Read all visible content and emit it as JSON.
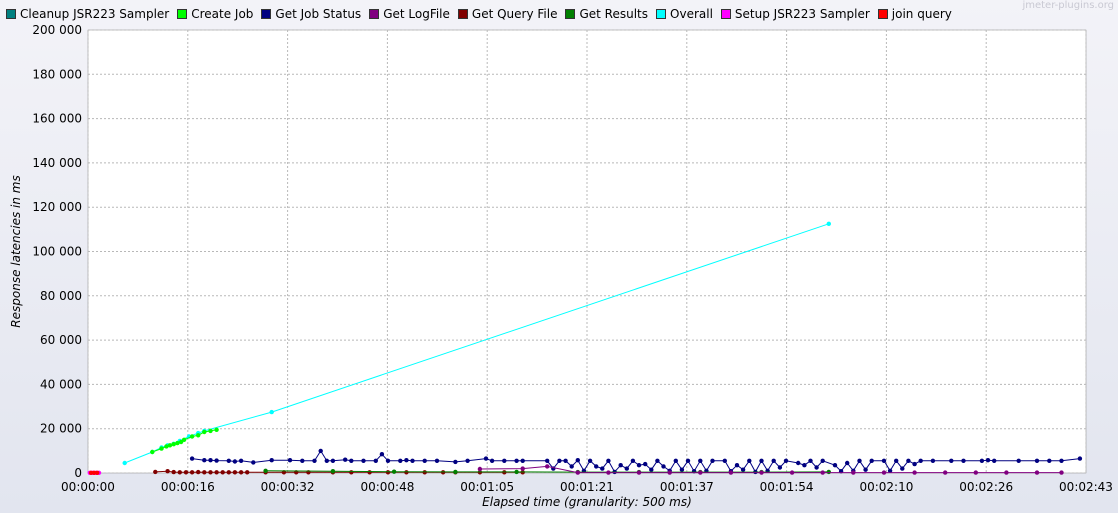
{
  "watermark": "jmeter-plugins.org",
  "legend": [
    {
      "name": "Cleanup JSR223 Sampler",
      "color": "#008080"
    },
    {
      "name": "Create Job",
      "color": "#00ff00"
    },
    {
      "name": "Get Job Status",
      "color": "#000080"
    },
    {
      "name": "Get LogFile",
      "color": "#800080"
    },
    {
      "name": "Get Query File",
      "color": "#800000"
    },
    {
      "name": "Get Results",
      "color": "#008000"
    },
    {
      "name": "Overall",
      "color": "#00ffff"
    },
    {
      "name": "Setup JSR223 Sampler",
      "color": "#ff00ff"
    },
    {
      "name": "join query",
      "color": "#ff0000"
    }
  ],
  "chart_data": {
    "type": "line",
    "xlabel": "Elapsed time (granularity: 500 ms)",
    "ylabel": "Response latencies in ms",
    "xlim": [
      0,
      163
    ],
    "ylim": [
      0,
      200000
    ],
    "x_ticks": [
      "00:00:00",
      "00:00:16",
      "00:00:32",
      "00:00:48",
      "00:01:05",
      "00:01:21",
      "00:01:37",
      "00:01:54",
      "00:02:10",
      "00:02:26",
      "00:02:43"
    ],
    "y_ticks": [
      "0",
      "20 000",
      "40 000",
      "60 000",
      "80 000",
      "100 000",
      "120 000",
      "140 000",
      "160 000",
      "180 000",
      "200 000"
    ],
    "grid": true,
    "legend_position": "top",
    "series": [
      {
        "name": "Overall",
        "color": "#00ffff",
        "points": [
          [
            6,
            4500
          ],
          [
            10.5,
            9500
          ],
          [
            12,
            11500
          ],
          [
            13,
            12500
          ],
          [
            14,
            13200
          ],
          [
            15,
            14500
          ],
          [
            16.5,
            16500
          ],
          [
            18,
            18000
          ],
          [
            19,
            19000
          ],
          [
            30,
            27500
          ],
          [
            121,
            112500
          ]
        ]
      },
      {
        "name": "Create Job",
        "color": "#00ff00",
        "points": [
          [
            10.5,
            9500
          ],
          [
            12,
            11000
          ],
          [
            12.8,
            12000
          ],
          [
            13.4,
            12500
          ],
          [
            14,
            13000
          ],
          [
            14.6,
            13500
          ],
          [
            15.2,
            14000
          ],
          [
            15.7,
            15000
          ],
          [
            17,
            16500
          ],
          [
            18,
            17000
          ],
          [
            19,
            18500
          ],
          [
            20,
            19000
          ],
          [
            21,
            19500
          ]
        ]
      },
      {
        "name": "Get Job Status",
        "color": "#000080",
        "points": [
          [
            17,
            6500
          ],
          [
            19,
            5800
          ],
          [
            20,
            5800
          ],
          [
            21,
            5600
          ],
          [
            23,
            5500
          ],
          [
            24,
            5200
          ],
          [
            25,
            5500
          ],
          [
            27,
            4800
          ],
          [
            30,
            5800
          ],
          [
            33,
            5800
          ],
          [
            35,
            5500
          ],
          [
            37,
            5500
          ],
          [
            38,
            10000
          ],
          [
            39,
            5500
          ],
          [
            40,
            5500
          ],
          [
            42,
            6000
          ],
          [
            43,
            5500
          ],
          [
            45,
            5500
          ],
          [
            47,
            5500
          ],
          [
            48,
            8500
          ],
          [
            49,
            5500
          ],
          [
            51,
            5500
          ],
          [
            52,
            5800
          ],
          [
            53,
            5500
          ],
          [
            55,
            5500
          ],
          [
            57,
            5500
          ],
          [
            60,
            5000
          ],
          [
            62,
            5500
          ],
          [
            65,
            6500
          ],
          [
            66,
            5500
          ],
          [
            68,
            5500
          ],
          [
            70,
            5500
          ],
          [
            71,
            5500
          ],
          [
            75,
            5500
          ],
          [
            76,
            2000
          ],
          [
            77,
            5500
          ],
          [
            78,
            5500
          ],
          [
            79,
            3000
          ],
          [
            80,
            5800
          ],
          [
            81,
            1000
          ],
          [
            82,
            5500
          ],
          [
            83,
            3000
          ],
          [
            84,
            2000
          ],
          [
            85,
            5500
          ],
          [
            86,
            500
          ],
          [
            87,
            3500
          ],
          [
            88,
            2000
          ],
          [
            89,
            5500
          ],
          [
            90,
            3500
          ],
          [
            91,
            4000
          ],
          [
            92,
            1500
          ],
          [
            93,
            5500
          ],
          [
            94,
            3000
          ],
          [
            95,
            1000
          ],
          [
            96,
            5500
          ],
          [
            97,
            1500
          ],
          [
            98,
            5500
          ],
          [
            99,
            800
          ],
          [
            100,
            5500
          ],
          [
            101,
            1000
          ],
          [
            102,
            5500
          ],
          [
            104,
            5500
          ],
          [
            105,
            800
          ],
          [
            106,
            3500
          ],
          [
            107,
            1500
          ],
          [
            108,
            5500
          ],
          [
            109,
            500
          ],
          [
            110,
            5500
          ],
          [
            111,
            1000
          ],
          [
            112,
            5500
          ],
          [
            113,
            2500
          ],
          [
            114,
            5500
          ],
          [
            116,
            4500
          ],
          [
            117,
            3500
          ],
          [
            118,
            5500
          ],
          [
            119,
            2500
          ],
          [
            120,
            5500
          ],
          [
            122,
            3500
          ],
          [
            123,
            800
          ],
          [
            124,
            4500
          ],
          [
            125,
            1000
          ],
          [
            126,
            5500
          ],
          [
            127,
            1500
          ],
          [
            128,
            5500
          ],
          [
            130,
            5500
          ],
          [
            131,
            1000
          ],
          [
            132,
            5500
          ],
          [
            133,
            2000
          ],
          [
            134,
            5500
          ],
          [
            135,
            4000
          ],
          [
            136,
            5500
          ],
          [
            138,
            5500
          ],
          [
            141,
            5500
          ],
          [
            143,
            5500
          ],
          [
            146,
            5500
          ],
          [
            147,
            5800
          ],
          [
            148,
            5500
          ],
          [
            152,
            5500
          ],
          [
            155,
            5500
          ],
          [
            157,
            5500
          ],
          [
            159,
            5500
          ],
          [
            162,
            6500
          ]
        ]
      },
      {
        "name": "Get Query File",
        "color": "#800000",
        "points": [
          [
            11,
            500
          ],
          [
            13,
            800
          ],
          [
            14,
            400
          ],
          [
            15,
            300
          ],
          [
            16,
            300
          ],
          [
            17,
            300
          ],
          [
            18,
            400
          ],
          [
            19,
            300
          ],
          [
            20,
            300
          ],
          [
            21,
            300
          ],
          [
            22,
            300
          ],
          [
            23,
            300
          ],
          [
            24,
            300
          ],
          [
            25,
            300
          ],
          [
            26,
            300
          ],
          [
            29,
            300
          ],
          [
            32,
            300
          ],
          [
            34,
            300
          ],
          [
            36,
            300
          ],
          [
            40,
            300
          ],
          [
            43,
            300
          ],
          [
            46,
            300
          ],
          [
            49,
            300
          ],
          [
            52,
            300
          ],
          [
            55,
            300
          ],
          [
            58,
            300
          ],
          [
            60,
            300
          ],
          [
            64,
            300
          ],
          [
            68,
            300
          ],
          [
            71,
            300
          ]
        ]
      },
      {
        "name": "Get Results",
        "color": "#008000",
        "points": [
          [
            29,
            1000
          ],
          [
            40,
            800
          ],
          [
            50,
            600
          ],
          [
            60,
            500
          ],
          [
            70,
            500
          ],
          [
            80,
            400
          ],
          [
            90,
            400
          ],
          [
            100,
            400
          ],
          [
            110,
            400
          ],
          [
            121,
            500
          ]
        ]
      },
      {
        "name": "Get LogFile",
        "color": "#800080",
        "points": [
          [
            64,
            1800
          ],
          [
            71,
            2000
          ],
          [
            75,
            3000
          ],
          [
            80,
            200
          ],
          [
            85,
            200
          ],
          [
            90,
            200
          ],
          [
            95,
            200
          ],
          [
            100,
            200
          ],
          [
            105,
            200
          ],
          [
            110,
            200
          ],
          [
            115,
            200
          ],
          [
            120,
            200
          ],
          [
            125,
            200
          ],
          [
            130,
            200
          ],
          [
            135,
            200
          ],
          [
            140,
            200
          ],
          [
            145,
            200
          ],
          [
            150,
            200
          ],
          [
            155,
            200
          ],
          [
            159,
            200
          ]
        ]
      },
      {
        "name": "Setup JSR223 Sampler",
        "color": "#ff00ff",
        "points": [
          [
            0.3,
            100
          ],
          [
            0.8,
            100
          ],
          [
            1.3,
            100
          ],
          [
            1.8,
            100
          ]
        ]
      },
      {
        "name": "join query",
        "color": "#ff0000",
        "points": [
          [
            0.5,
            100
          ],
          [
            1,
            100
          ],
          [
            1.5,
            100
          ]
        ]
      }
    ]
  }
}
